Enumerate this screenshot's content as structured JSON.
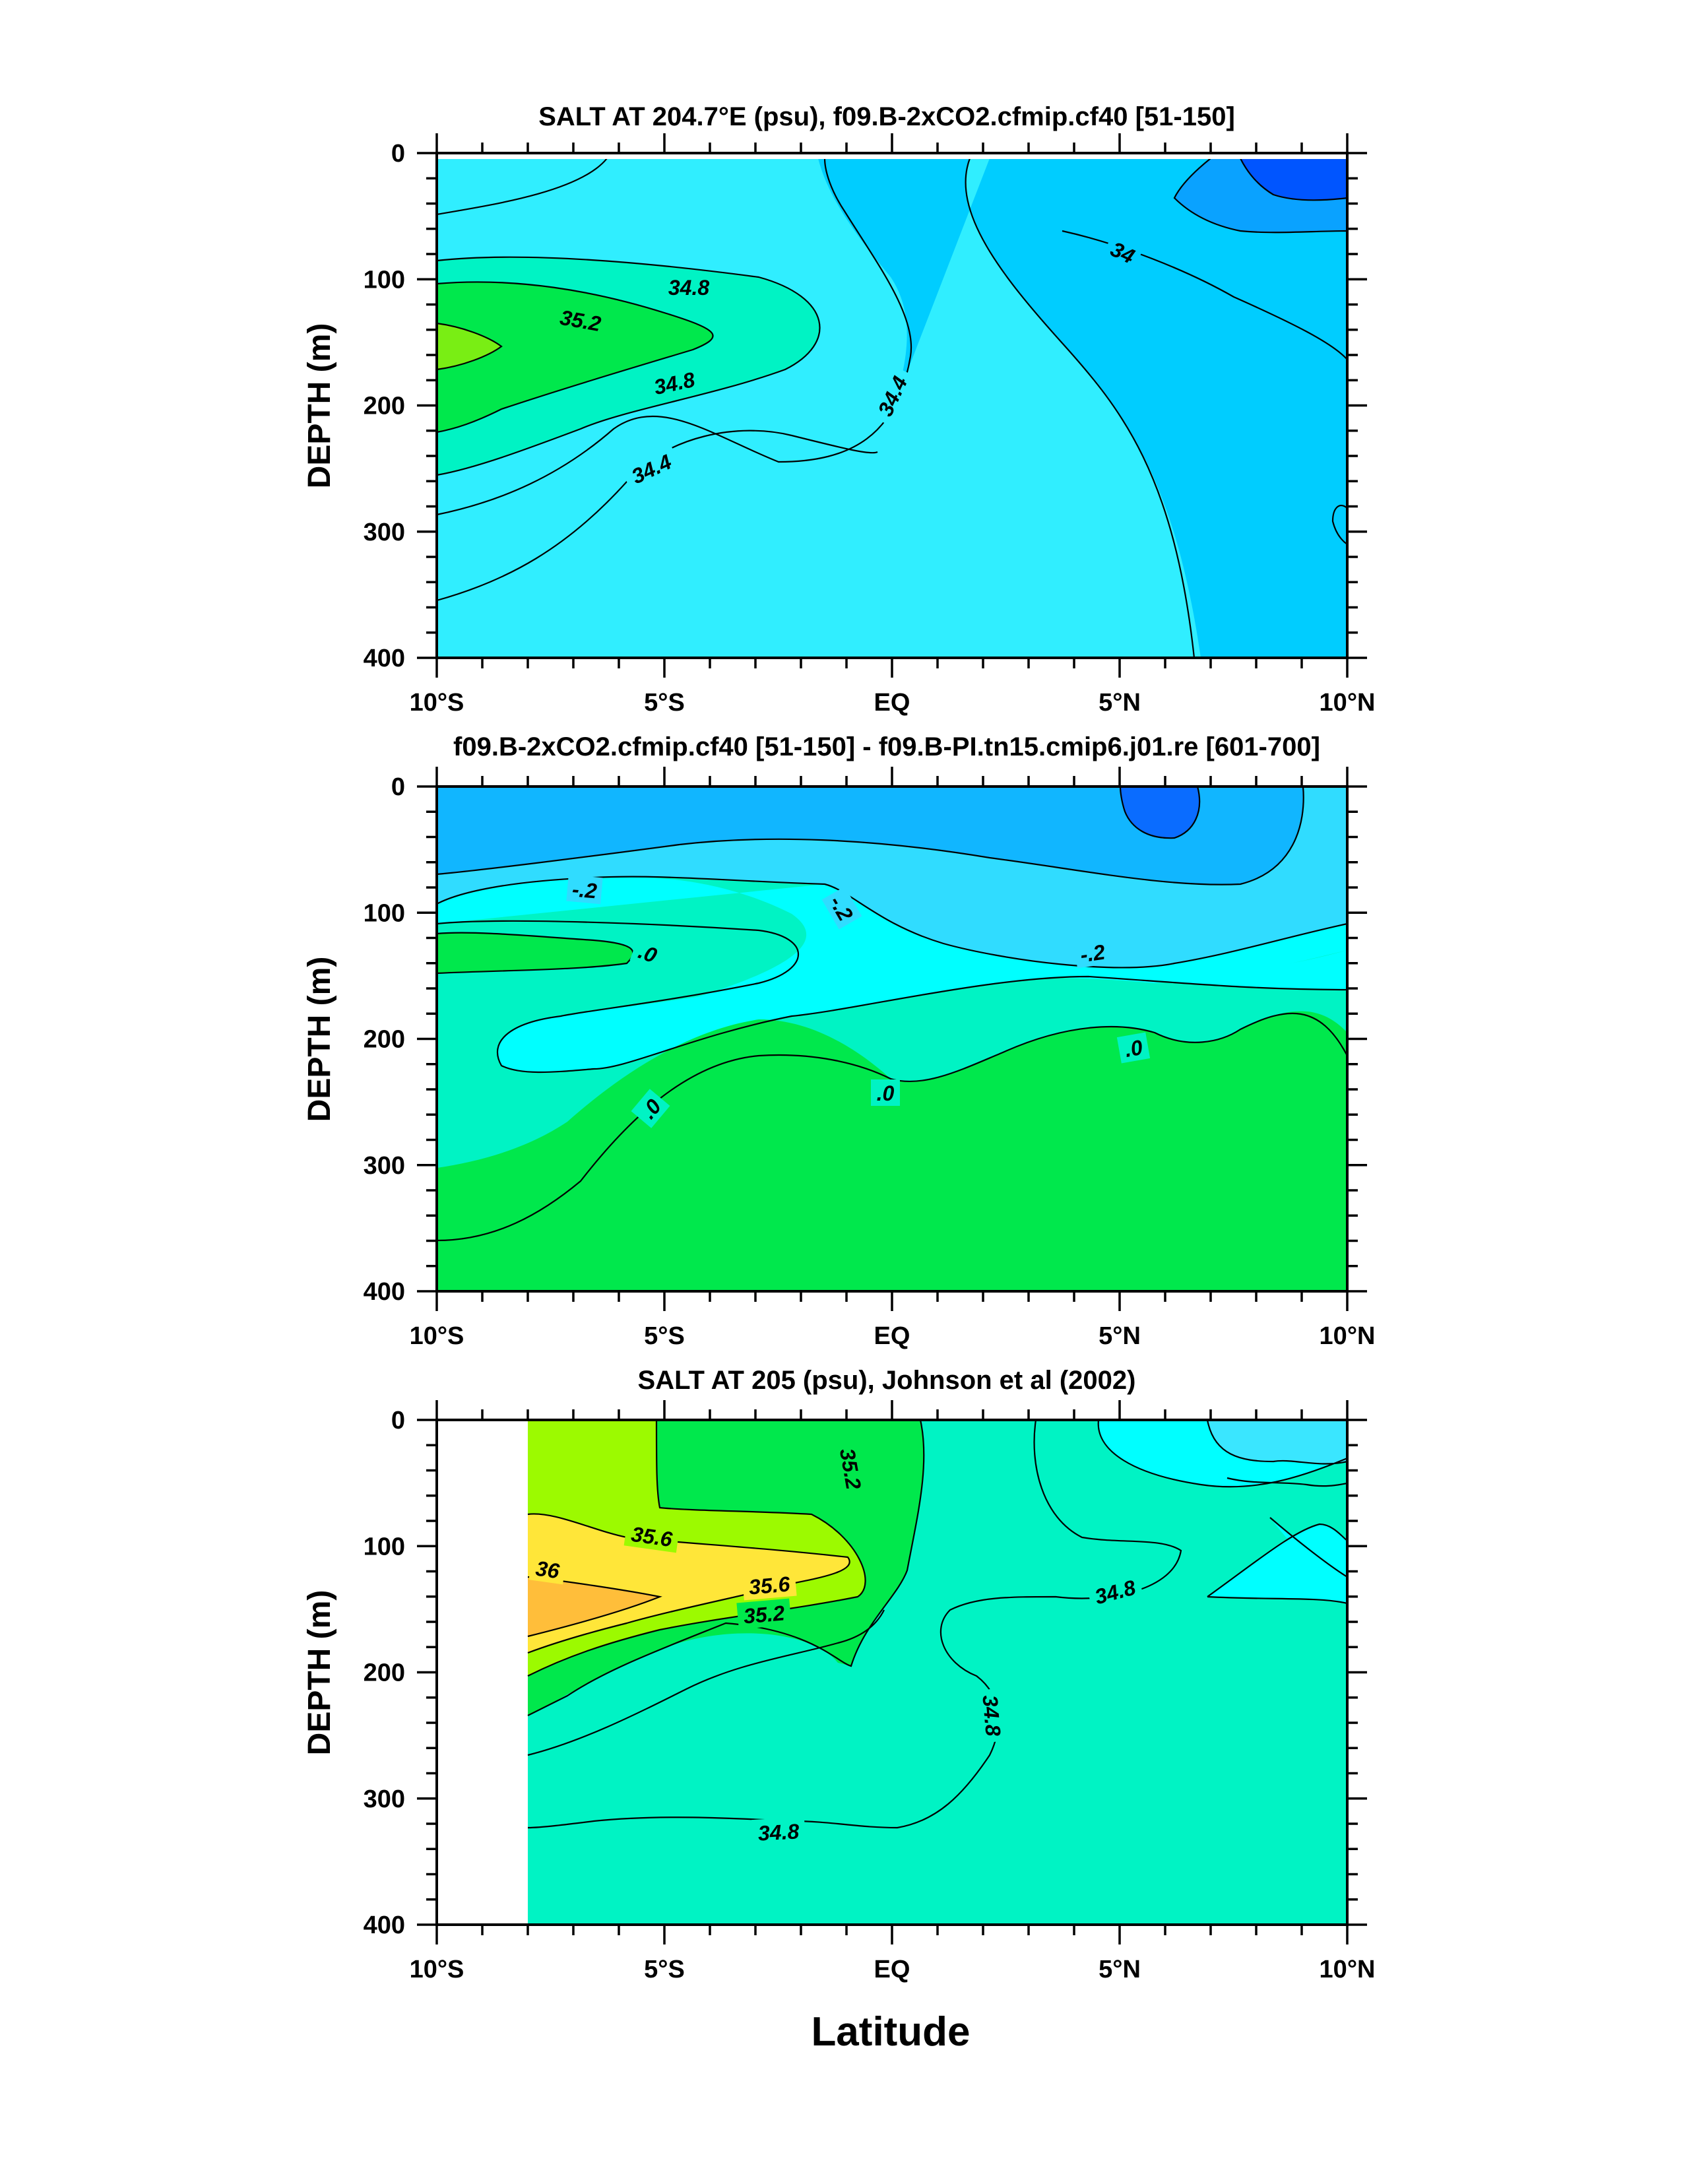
{
  "chart_data": [
    {
      "type": "contour",
      "title": "SALT AT 204.7°E (psu), f09.B-2xCO2.cfmip.cf40 [51-150]",
      "ylabel": "DEPTH (m)",
      "xlabel": "",
      "x_ticks": [
        "10°S",
        "5°S",
        "EQ",
        "5°N",
        "10°N"
      ],
      "y_ticks": [
        "0",
        "100",
        "200",
        "300",
        "400"
      ],
      "xlim": [
        -10,
        10
      ],
      "ylim": [
        400,
        0
      ],
      "contour_labels": [
        "34.8",
        "35.2",
        "34.8",
        "34.4",
        "34.4",
        "34"
      ],
      "colors": [
        "#79ee14",
        "#00e84c",
        "#00f3c4",
        "#30eeff",
        "#00cdff",
        "#0aa2ff",
        "#0055ff"
      ]
    },
    {
      "type": "contour",
      "title": "f09.B-2xCO2.cfmip.cf40 [51-150] - f09.B-PI.tn15.cmip6.j01.re [601-700]",
      "ylabel": "DEPTH (m)",
      "xlabel": "",
      "x_ticks": [
        "10°S",
        "5°S",
        "EQ",
        "5°N",
        "10°N"
      ],
      "y_ticks": [
        "0",
        "100",
        "200",
        "300",
        "400"
      ],
      "xlim": [
        -10,
        10
      ],
      "ylim": [
        400,
        0
      ],
      "contour_labels": [
        "-.2",
        "-.2",
        "-.2",
        ".0",
        ".0",
        ".0",
        ".0"
      ],
      "colors": [
        "#00e84c",
        "#00f3c4",
        "#00ffff",
        "#30dcff",
        "#11b6ff",
        "#0a6cff"
      ]
    },
    {
      "type": "contour",
      "title": "SALT AT 205 (psu), Johnson et al (2002)",
      "ylabel": "DEPTH (m)",
      "xlabel": "Latitude",
      "x_ticks": [
        "10°S",
        "5°S",
        "EQ",
        "5°N",
        "10°N"
      ],
      "y_ticks": [
        "0",
        "100",
        "200",
        "300",
        "400"
      ],
      "xlim": [
        -10,
        10
      ],
      "ylim": [
        400,
        0
      ],
      "contour_labels": [
        "35.2",
        "35.6",
        "36",
        "35.6",
        "35.2",
        "34.8",
        "34.8",
        "34.8"
      ],
      "colors": [
        "#ffbe3a",
        "#ffe639",
        "#9cfa00",
        "#00e84c",
        "#00f3c4",
        "#00ffff",
        "#3ae6ff"
      ]
    }
  ]
}
